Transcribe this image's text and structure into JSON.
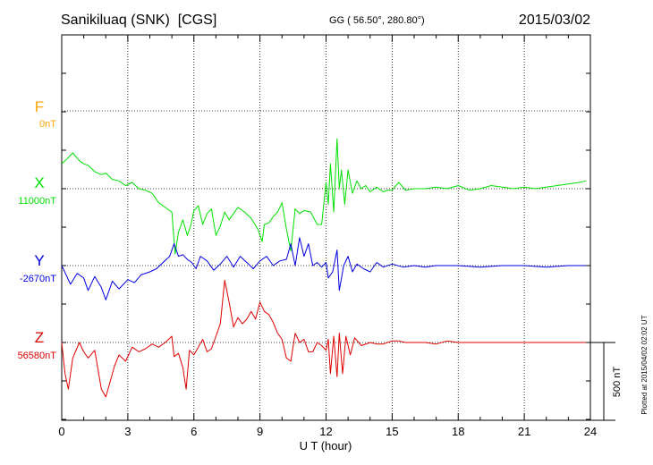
{
  "header": {
    "station": "Sanikiluaq (SNK)  [CGS]",
    "coords": "GG ( 56.50°, 280.80°)",
    "date": "2015/03/02"
  },
  "side_note": "Plotted at 2015/04/02 02:02 UT",
  "chart_data": {
    "type": "line",
    "xlabel": "U T (hour)",
    "xlim": [
      0,
      24
    ],
    "xticks": [
      "0",
      "3",
      "6",
      "9",
      "12",
      "15",
      "18",
      "21",
      "24"
    ],
    "scale_bar_label": "500 nT",
    "scale_bar_nT": 500,
    "series": [
      {
        "name": "F",
        "baseline_label": "0nT",
        "color": "#ffa500",
        "x": [],
        "y": []
      },
      {
        "name": "X",
        "baseline_label": "11000nT",
        "color": "#00e000",
        "x": [
          0,
          0.3,
          0.5,
          0.8,
          1.0,
          1.2,
          1.5,
          1.8,
          2.0,
          2.3,
          2.6,
          2.9,
          3.2,
          3.5,
          3.8,
          4.1,
          4.4,
          4.7,
          5.0,
          5.15,
          5.3,
          5.5,
          5.7,
          5.85,
          6.0,
          6.2,
          6.4,
          6.6,
          6.8,
          7.0,
          7.2,
          7.4,
          7.6,
          7.8,
          8.0,
          8.3,
          8.6,
          8.9,
          9.1,
          9.2,
          9.4,
          9.6,
          9.8,
          10.0,
          10.2,
          10.4,
          10.6,
          10.8,
          11.0,
          11.3,
          11.6,
          11.8,
          12.0,
          12.1,
          12.2,
          12.35,
          12.5,
          12.6,
          12.7,
          12.85,
          13.0,
          13.2,
          13.4,
          13.6,
          13.8,
          14.0,
          14.3,
          14.6,
          14.8,
          15.0,
          15.3,
          15.6,
          16.0,
          16.5,
          17.0,
          17.5,
          18.0,
          18.5,
          19.0,
          19.5,
          20.0,
          20.5,
          21.0,
          21.5,
          22.0,
          22.5,
          23.0,
          23.5,
          23.8
        ],
        "y": [
          160,
          200,
          230,
          180,
          160,
          150,
          110,
          90,
          100,
          60,
          50,
          20,
          40,
          0,
          -10,
          -30,
          -90,
          -120,
          -150,
          -420,
          -280,
          -200,
          -300,
          -240,
          -140,
          -110,
          -230,
          -160,
          -130,
          -300,
          -240,
          -150,
          -200,
          -160,
          -120,
          -150,
          -190,
          -260,
          -340,
          -230,
          -220,
          -180,
          -150,
          -90,
          -260,
          -400,
          -130,
          -160,
          -140,
          -150,
          -230,
          -230,
          40,
          -100,
          160,
          -150,
          320,
          0,
          120,
          -100,
          120,
          -30,
          50,
          0,
          20,
          -20,
          10,
          -20,
          -10,
          -10,
          40,
          -10,
          0,
          0,
          10,
          0,
          20,
          -10,
          0,
          20,
          10,
          0,
          10,
          0,
          10,
          20,
          30,
          40,
          50
        ]
      },
      {
        "name": "Y",
        "baseline_label": "-2670nT",
        "color": "#0000e0",
        "x": [
          0,
          0.2,
          0.4,
          0.7,
          1.0,
          1.2,
          1.5,
          1.8,
          2.0,
          2.3,
          2.6,
          3.0,
          3.3,
          3.6,
          4.0,
          4.3,
          4.6,
          4.9,
          5.1,
          5.3,
          5.5,
          5.7,
          5.9,
          6.1,
          6.3,
          6.6,
          6.9,
          7.2,
          7.5,
          7.8,
          8.1,
          8.4,
          8.7,
          9.0,
          9.3,
          9.6,
          9.9,
          10.2,
          10.4,
          10.6,
          10.8,
          11.0,
          11.2,
          11.4,
          11.6,
          11.8,
          12.0,
          12.1,
          12.3,
          12.5,
          12.6,
          12.8,
          13.0,
          13.2,
          13.4,
          13.7,
          14.0,
          14.3,
          14.6,
          15.0,
          15.5,
          16.0,
          16.5,
          17.0,
          17.5,
          18.0,
          19.0,
          20.0,
          21.0,
          22.0,
          23.0,
          23.8
        ],
        "y": [
          0,
          -60,
          -120,
          -50,
          -80,
          -160,
          -70,
          -140,
          -220,
          -100,
          -150,
          -90,
          -110,
          -60,
          -40,
          -20,
          20,
          60,
          140,
          60,
          70,
          40,
          20,
          -20,
          60,
          30,
          -30,
          10,
          60,
          -10,
          60,
          20,
          -20,
          30,
          60,
          0,
          30,
          40,
          140,
          0,
          180,
          60,
          140,
          0,
          20,
          -10,
          20,
          -80,
          -40,
          100,
          -160,
          0,
          60,
          -40,
          10,
          -20,
          -40,
          20,
          -10,
          10,
          -10,
          0,
          -10,
          0,
          0,
          0,
          -10,
          0,
          0,
          -10,
          0,
          0
        ]
      },
      {
        "name": "Z",
        "baseline_label": "56580nT",
        "color": "#e00000",
        "x": [
          0,
          0.15,
          0.3,
          0.5,
          0.8,
          1.0,
          1.2,
          1.5,
          1.8,
          2.0,
          2.2,
          2.4,
          2.6,
          2.9,
          3.2,
          3.5,
          3.8,
          4.1,
          4.4,
          4.7,
          5.0,
          5.1,
          5.3,
          5.5,
          5.65,
          5.8,
          6.0,
          6.2,
          6.4,
          6.6,
          6.8,
          7.0,
          7.2,
          7.4,
          7.6,
          7.8,
          8.0,
          8.2,
          8.4,
          8.6,
          8.8,
          9.0,
          9.2,
          9.4,
          9.6,
          9.8,
          10.0,
          10.2,
          10.4,
          10.6,
          10.8,
          11.0,
          11.2,
          11.4,
          11.6,
          11.8,
          12.0,
          12.1,
          12.2,
          12.35,
          12.5,
          12.6,
          12.75,
          12.9,
          13.1,
          13.3,
          13.6,
          14.0,
          14.3,
          14.6,
          15.0,
          15.3,
          15.6,
          16.0,
          16.5,
          17.0,
          17.5,
          18.0,
          19.0,
          20.0,
          21.0,
          22.0,
          23.0,
          23.8
        ],
        "y": [
          0,
          -200,
          -300,
          -100,
          0,
          -60,
          -100,
          -50,
          -300,
          -350,
          -250,
          -150,
          -80,
          -120,
          -30,
          -60,
          -40,
          -10,
          -30,
          0,
          40,
          -90,
          -70,
          -160,
          -300,
          -50,
          -80,
          -30,
          20,
          -60,
          -40,
          40,
          120,
          400,
          260,
          100,
          160,
          120,
          150,
          200,
          150,
          260,
          200,
          180,
          130,
          60,
          20,
          -100,
          -120,
          60,
          0,
          20,
          -60,
          -60,
          0,
          -20,
          -50,
          20,
          -200,
          40,
          -220,
          60,
          -200,
          40,
          -80,
          30,
          -20,
          0,
          -10,
          -10,
          10,
          10,
          0,
          0,
          0,
          -10,
          10,
          0,
          0,
          0,
          0,
          0,
          0,
          0
        ]
      }
    ]
  }
}
